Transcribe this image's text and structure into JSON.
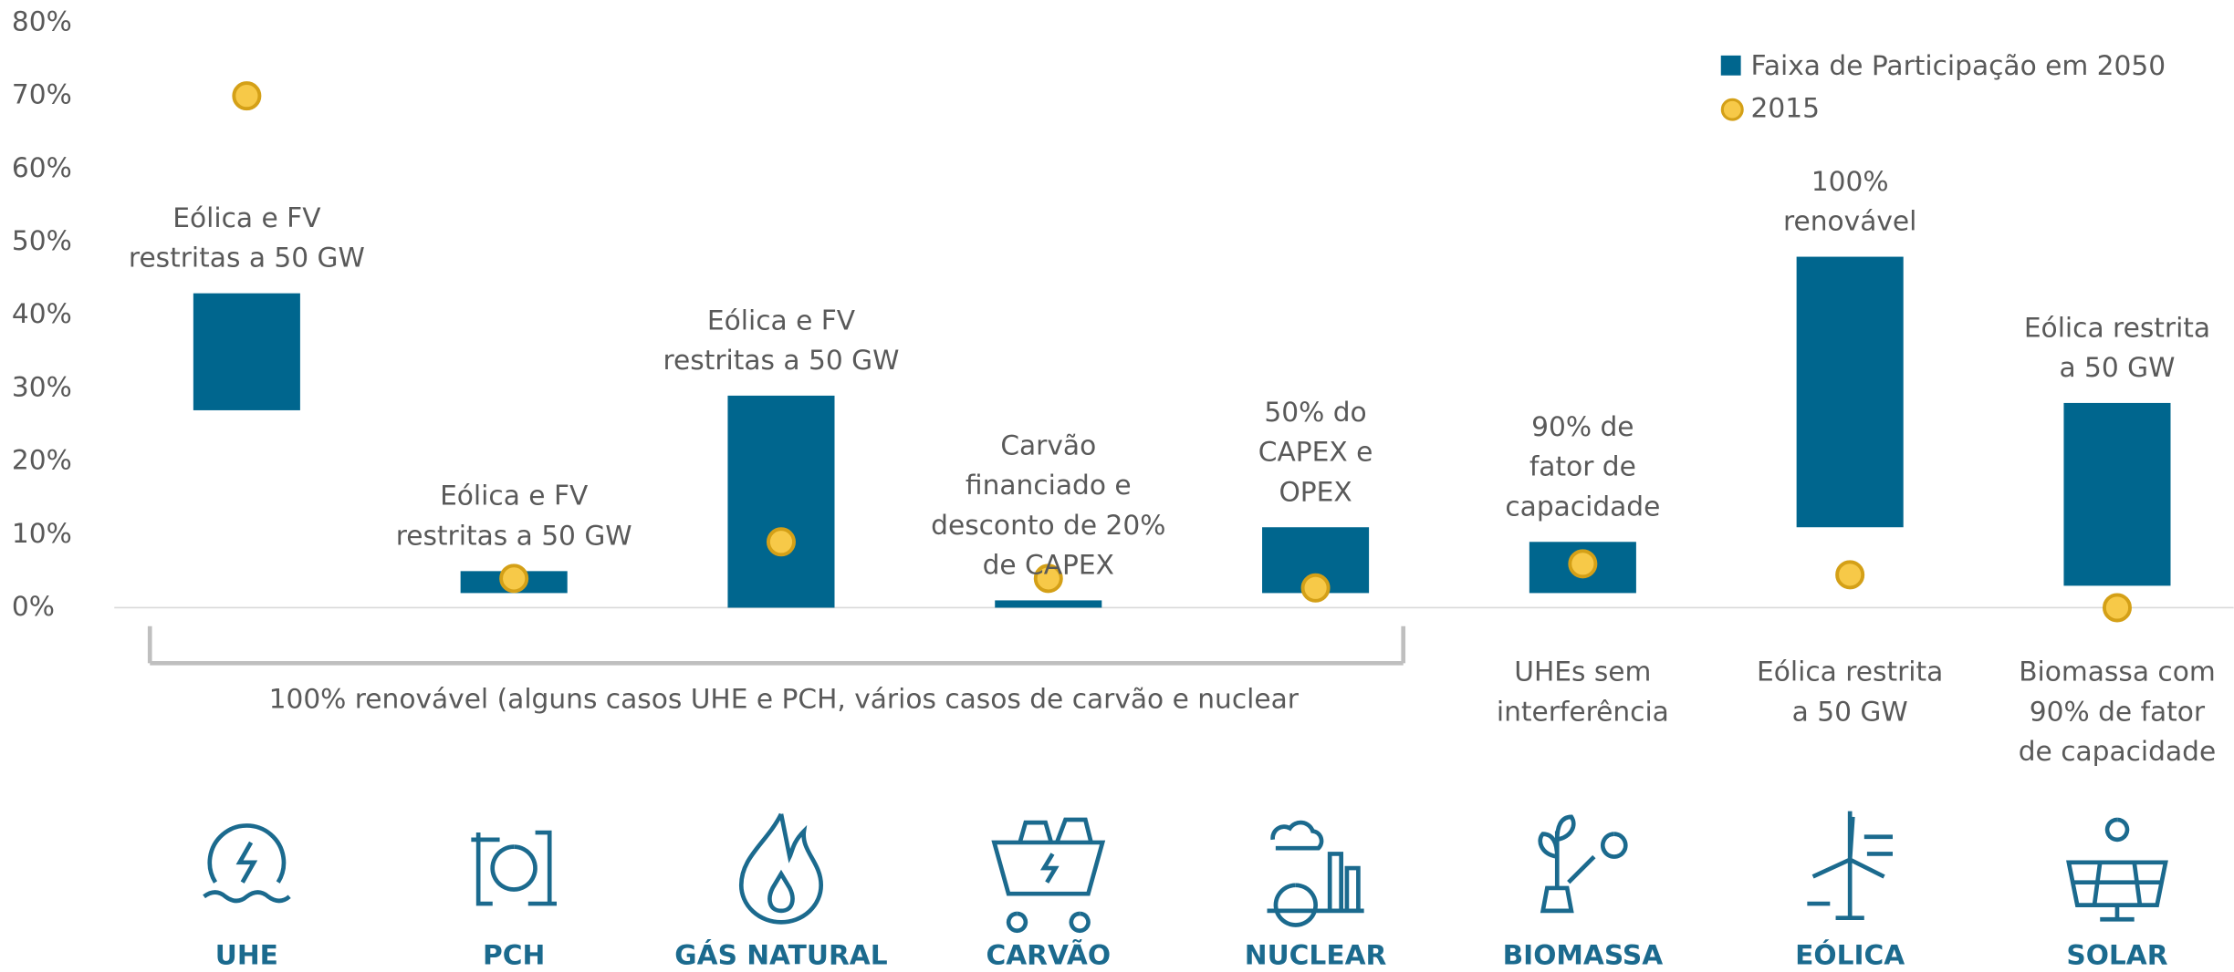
{
  "chart_data": {
    "type": "floating_bar",
    "categories": [
      "UHE",
      "PCH",
      "GÁS NATURAL",
      "CARVÃO",
      "NUCLEAR",
      "BIOMASSA",
      "EÓLICA",
      "SOLAR"
    ],
    "series": [
      {
        "name": "Faixa de Participação em 2050",
        "color": "#00668e",
        "low": [
          27,
          2,
          0,
          0,
          2,
          2,
          11,
          3
        ],
        "high": [
          43,
          5,
          29,
          1,
          11,
          9,
          48,
          28
        ]
      },
      {
        "name": "2015",
        "color": "#f7c948",
        "values": [
          70,
          4,
          9,
          4,
          2.7,
          6,
          4.5,
          0
        ]
      }
    ],
    "ylim": [
      0,
      80
    ],
    "yticks": [
      {
        "value": 0,
        "label": "0%"
      },
      {
        "value": 10,
        "label": "10%"
      },
      {
        "value": 20,
        "label": "20%"
      },
      {
        "value": 30,
        "label": "30%"
      },
      {
        "value": 40,
        "label": "40%"
      },
      {
        "value": 50,
        "label": "50%"
      },
      {
        "value": 60,
        "label": "60%"
      },
      {
        "value": 70,
        "label": "70%"
      },
      {
        "value": 80,
        "label": "80%"
      }
    ],
    "annotations_above": [
      [
        "Eólica e FV",
        "restritas a 50 GW"
      ],
      [
        "Eólica e FV",
        "restritas a 50 GW"
      ],
      [
        "Eólica e FV",
        "restritas a 50 GW"
      ],
      [
        "Carvão",
        "financiado e",
        "desconto de 20%",
        "de CAPEX"
      ],
      [
        "50% do",
        "CAPEX e",
        "OPEX"
      ],
      [
        "90% de",
        "fator de",
        "capacidade"
      ],
      [
        "100%",
        "renovável"
      ],
      [
        "Eólica restrita",
        "a 50 GW"
      ]
    ],
    "annotations_below": [
      null,
      null,
      null,
      null,
      null,
      [
        "UHEs sem",
        "interferência"
      ],
      [
        "Eólica restrita",
        "a 50 GW"
      ],
      [
        "Biomassa com",
        "90% de fator",
        "de capacidade"
      ]
    ],
    "bracket_label": "100% renovável (alguns casos UHE e PCH, vários casos de carvão e nuclear",
    "legend": "top-right"
  }
}
